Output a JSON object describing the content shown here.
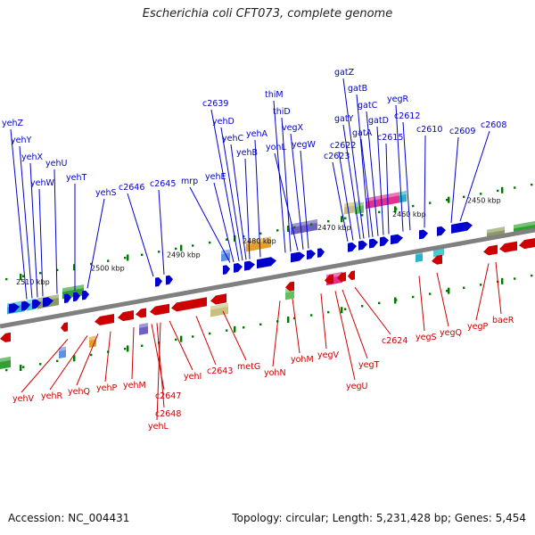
{
  "title": "Escherichia coli CFT073, complete genome",
  "footer": {
    "accession": "Accession: NC_004431",
    "summary": "Topology: circular; Length: 5,231,428 bp; Genes: 5,454"
  },
  "colors": {
    "forward": "#0000cc",
    "reverse": "#cc0000",
    "backbone": "#808080",
    "tick": "#007700"
  },
  "scale_labels": [
    "2510 kbp",
    "2500 kbp",
    "2490 kbp",
    "2480 kbp",
    "2470 kbp",
    "2460 kbp",
    "2450 kbp"
  ],
  "forward_genes": [
    "yehZ",
    "yehY",
    "yehX",
    "yehW",
    "yehU",
    "yehT",
    "yehS",
    "c2646",
    "c2645",
    "mrp",
    "yehE",
    "c2639",
    "yehD",
    "yehC",
    "yehB",
    "yehA",
    "thiM",
    "thiD",
    "yohL",
    "vegX",
    "yegW",
    "c2623",
    "c2622",
    "gatY",
    "gatZ",
    "gatB",
    "gatA",
    "gatC",
    "gatD",
    "c2615",
    "yegR",
    "c2612",
    "c2610",
    "c2609",
    "c2608"
  ],
  "reverse_genes": [
    "yehV",
    "yehR",
    "yehQ",
    "yehP",
    "yehM",
    "c2647",
    "c2648",
    "yehL",
    "yehI",
    "c2643",
    "metG",
    "yohN",
    "yohM",
    "yegV",
    "yegU",
    "yegT",
    "c2624",
    "yegS",
    "yegQ",
    "yegP",
    "baeR"
  ]
}
